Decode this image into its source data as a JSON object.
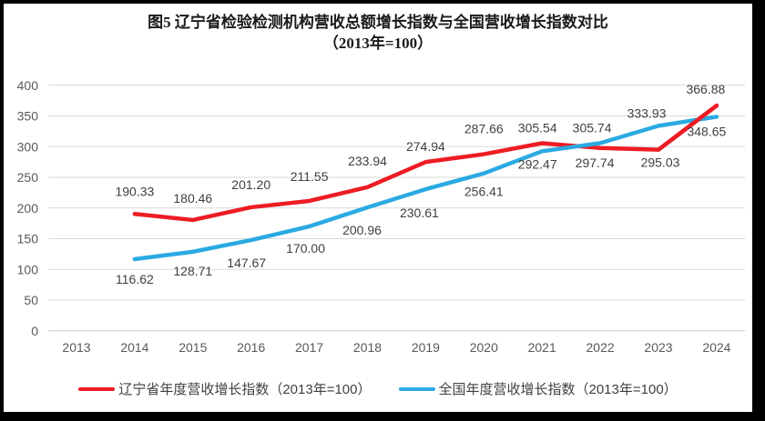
{
  "title": {
    "line1": "图5  辽宁省检验检测机构营收总额增长指数与全国营收增长指数对比",
    "line2": "（2013年=100）"
  },
  "chart_data": {
    "type": "line",
    "categories": [
      "2013",
      "2014",
      "2015",
      "2016",
      "2017",
      "2018",
      "2019",
      "2020",
      "2021",
      "2022",
      "2023",
      "2024"
    ],
    "series": [
      {
        "name": "辽宁省年度营收增长指数（2013年=100）",
        "color": "#ED1C24",
        "values": [
          null,
          190.33,
          180.46,
          201.2,
          211.55,
          233.94,
          274.94,
          287.66,
          305.54,
          297.74,
          295.03,
          366.88
        ]
      },
      {
        "name": "全国年度营收增长指数（2013年=100）",
        "color": "#2BAAE2",
        "values": [
          null,
          116.62,
          128.71,
          147.67,
          170.0,
          200.96,
          230.61,
          256.41,
          292.47,
          305.74,
          333.93,
          348.65
        ]
      }
    ],
    "ylim": [
      0,
      400
    ],
    "yticks": [
      0,
      50,
      100,
      150,
      200,
      250,
      300,
      350,
      400
    ],
    "grid": true,
    "gridline_color": "#D9D9D9",
    "axis_line_color": "#C6C6C6",
    "label_color": "#404040",
    "tick_color": "#595959",
    "legend_position": "bottom"
  }
}
